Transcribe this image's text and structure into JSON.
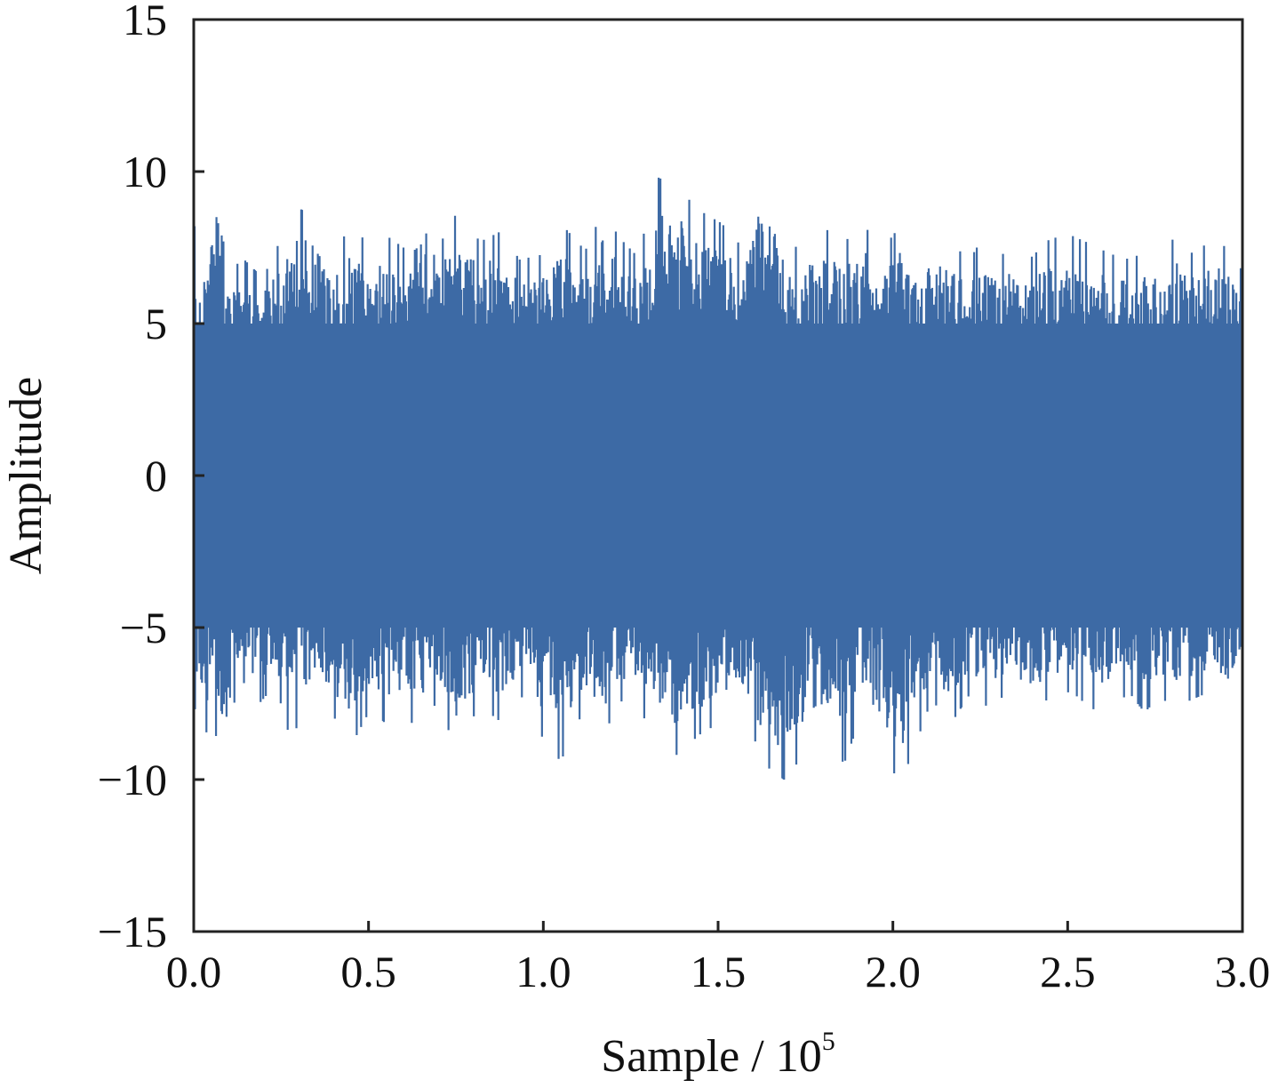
{
  "chart_data": {
    "type": "line",
    "title": "",
    "xlabel": "Sample / 10",
    "xlabel_superscript": "5",
    "ylabel": "Amplitude",
    "xlim": [
      0.0,
      3.0
    ],
    "ylim": [
      -15,
      15
    ],
    "x_ticks": [
      "0.0",
      "0.5",
      "1.0",
      "1.5",
      "2.0",
      "2.5",
      "3.0"
    ],
    "y_ticks": [
      "15",
      "10",
      "5",
      "0",
      "−5",
      "−10",
      "−15"
    ],
    "grid": false,
    "legend": "none",
    "series_color": "#3d6aa5",
    "series": [
      {
        "x": [
          0.0,
          0.008,
          0.015,
          0.023,
          0.028,
          0.055,
          0.085,
          0.115,
          0.145,
          0.18,
          0.21,
          0.25,
          0.3,
          0.35,
          0.41,
          0.44,
          0.51,
          0.55,
          0.6,
          0.64,
          0.68,
          0.75,
          0.82,
          0.89,
          0.93,
          1.01,
          1.05,
          1.12,
          1.17,
          1.22,
          1.27,
          1.33,
          1.38,
          1.45,
          1.51,
          1.57,
          1.63,
          1.7,
          1.76,
          1.81,
          1.86,
          1.91,
          1.96,
          2.02,
          2.07,
          2.11,
          2.17,
          2.22,
          2.26,
          2.3,
          2.35,
          2.38,
          2.45,
          2.51,
          2.57,
          2.62,
          2.68,
          2.72,
          2.76,
          2.81,
          2.85,
          2.91,
          2.96,
          3.0
        ],
        "max": [
          8.7,
          7.1,
          7.6,
          6.9,
          7.9,
          8.9,
          7.7,
          6.9,
          7.1,
          6.7,
          6.8,
          7.8,
          8.8,
          8.5,
          6.6,
          8.5,
          7.4,
          7.9,
          7.5,
          9.4,
          7.1,
          8.6,
          7.7,
          8.1,
          7.1,
          7.3,
          8.3,
          7.4,
          8.7,
          7.8,
          7.2,
          9.8,
          9.5,
          8.7,
          8.3,
          7.5,
          10.4,
          7.3,
          7.9,
          8.1,
          7.6,
          8.5,
          7.3,
          8.2,
          7.0,
          8.2,
          7.6,
          7.1,
          7.9,
          7.2,
          7.5,
          7.0,
          7.8,
          7.9,
          7.6,
          7.3,
          7.1,
          7.4,
          7.2,
          7.9,
          7.3,
          7.7,
          7.5,
          7.6
        ],
        "min": [
          -7.5,
          -7.9,
          -6.9,
          -7.8,
          -8.6,
          -8.1,
          -9.7,
          -7.5,
          -6.8,
          -7.6,
          -7.2,
          -8.4,
          -8.3,
          -7.1,
          -8.1,
          -9.1,
          -7.6,
          -8.2,
          -7.9,
          -8.3,
          -7.4,
          -8.8,
          -7.6,
          -8.2,
          -7.1,
          -8.9,
          -9.4,
          -7.6,
          -8.6,
          -7.4,
          -7.8,
          -8.4,
          -9.2,
          -8.5,
          -8.1,
          -7.6,
          -9.5,
          -10.1,
          -8.6,
          -8.3,
          -9.5,
          -7.9,
          -8.7,
          -10.2,
          -8.7,
          -7.4,
          -8.1,
          -7.2,
          -7.6,
          -7.4,
          -7.0,
          -7.9,
          -7.3,
          -7.1,
          -7.7,
          -7.5,
          -7.2,
          -7.8,
          -7.3,
          -7.6,
          -7.4,
          -7.1,
          -7.5,
          -7.2
        ]
      }
    ]
  }
}
